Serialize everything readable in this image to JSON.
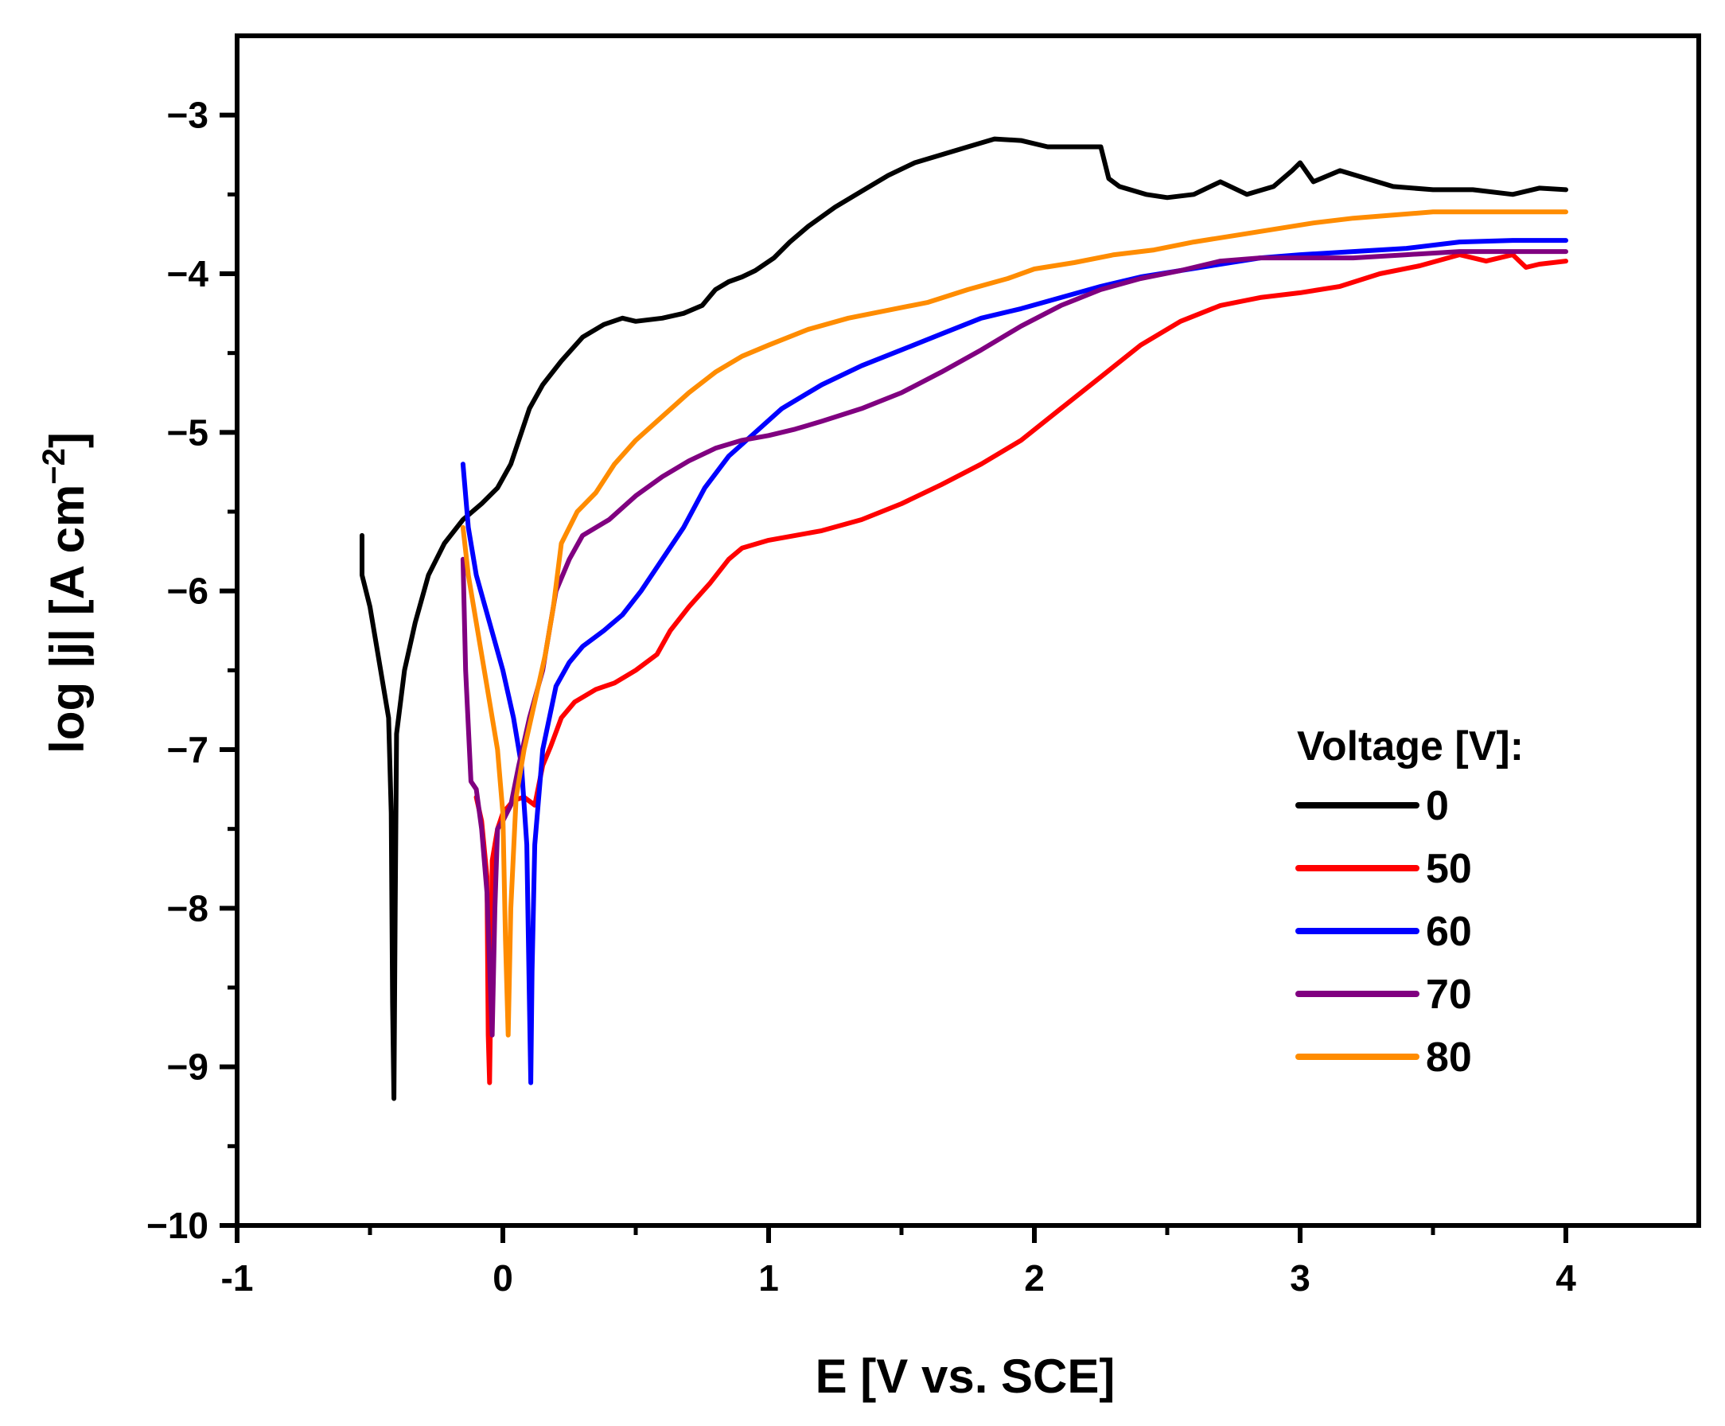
{
  "chart_data": {
    "type": "line",
    "title": "",
    "xlabel": "E [V vs. SCE]",
    "ylabel": "log |j| [A cm",
    "ylabel_sup": "−2",
    "ylabel_close": "]",
    "xlim": [
      -1,
      4.5
    ],
    "ylim": [
      -10,
      -2.5
    ],
    "xticks": [
      -1,
      0,
      1,
      2,
      3,
      4
    ],
    "xtick_labels": [
      "-1",
      "0",
      "1",
      "2",
      "3",
      "4"
    ],
    "yticks": [
      -10,
      -9,
      -8,
      -7,
      -6,
      -5,
      -4,
      -3
    ],
    "ytick_labels": [
      "−10",
      "−9",
      "−8",
      "−7",
      "−6",
      "−5",
      "−4",
      "−3"
    ],
    "legend_title": "Voltage [V]:",
    "legend_position": "bottom-right",
    "series": [
      {
        "name": "0",
        "color": "#000000",
        "points": [
          [
            -0.53,
            -5.65
          ],
          [
            -0.53,
            -5.9
          ],
          [
            -0.5,
            -6.1
          ],
          [
            -0.46,
            -6.5
          ],
          [
            -0.43,
            -6.8
          ],
          [
            -0.42,
            -7.4
          ],
          [
            -0.415,
            -8.6
          ],
          [
            -0.41,
            -9.2
          ],
          [
            -0.405,
            -8.0
          ],
          [
            -0.4,
            -6.9
          ],
          [
            -0.37,
            -6.5
          ],
          [
            -0.33,
            -6.2
          ],
          [
            -0.28,
            -5.9
          ],
          [
            -0.22,
            -5.7
          ],
          [
            -0.15,
            -5.55
          ],
          [
            -0.08,
            -5.45
          ],
          [
            -0.02,
            -5.35
          ],
          [
            0.03,
            -5.2
          ],
          [
            0.07,
            -5.0
          ],
          [
            0.1,
            -4.85
          ],
          [
            0.15,
            -4.7
          ],
          [
            0.22,
            -4.55
          ],
          [
            0.3,
            -4.4
          ],
          [
            0.38,
            -4.32
          ],
          [
            0.45,
            -4.28
          ],
          [
            0.5,
            -4.3
          ],
          [
            0.6,
            -4.28
          ],
          [
            0.68,
            -4.25
          ],
          [
            0.75,
            -4.2
          ],
          [
            0.8,
            -4.1
          ],
          [
            0.85,
            -4.05
          ],
          [
            0.9,
            -4.02
          ],
          [
            0.95,
            -3.98
          ],
          [
            1.02,
            -3.9
          ],
          [
            1.08,
            -3.8
          ],
          [
            1.15,
            -3.7
          ],
          [
            1.25,
            -3.58
          ],
          [
            1.35,
            -3.48
          ],
          [
            1.45,
            -3.38
          ],
          [
            1.55,
            -3.3
          ],
          [
            1.65,
            -3.25
          ],
          [
            1.75,
            -3.2
          ],
          [
            1.85,
            -3.15
          ],
          [
            1.95,
            -3.16
          ],
          [
            2.05,
            -3.2
          ],
          [
            2.15,
            -3.2
          ],
          [
            2.25,
            -3.2
          ],
          [
            2.28,
            -3.4
          ],
          [
            2.32,
            -3.45
          ],
          [
            2.42,
            -3.5
          ],
          [
            2.5,
            -3.52
          ],
          [
            2.6,
            -3.5
          ],
          [
            2.7,
            -3.42
          ],
          [
            2.8,
            -3.5
          ],
          [
            2.9,
            -3.45
          ],
          [
            2.97,
            -3.35
          ],
          [
            3.0,
            -3.3
          ],
          [
            3.05,
            -3.42
          ],
          [
            3.15,
            -3.35
          ],
          [
            3.25,
            -3.4
          ],
          [
            3.35,
            -3.45
          ],
          [
            3.5,
            -3.47
          ],
          [
            3.65,
            -3.47
          ],
          [
            3.8,
            -3.5
          ],
          [
            3.9,
            -3.46
          ],
          [
            4.0,
            -3.47
          ]
        ]
      },
      {
        "name": "50",
        "color": "#ff0000",
        "points": [
          [
            -0.1,
            -7.3
          ],
          [
            -0.08,
            -7.45
          ],
          [
            -0.06,
            -7.8
          ],
          [
            -0.055,
            -8.8
          ],
          [
            -0.05,
            -9.1
          ],
          [
            -0.045,
            -8.5
          ],
          [
            -0.04,
            -7.7
          ],
          [
            -0.02,
            -7.5
          ],
          [
            0.0,
            -7.4
          ],
          [
            0.04,
            -7.32
          ],
          [
            0.08,
            -7.3
          ],
          [
            0.12,
            -7.35
          ],
          [
            0.15,
            -7.1
          ],
          [
            0.18,
            -6.98
          ],
          [
            0.22,
            -6.8
          ],
          [
            0.27,
            -6.7
          ],
          [
            0.35,
            -6.62
          ],
          [
            0.42,
            -6.58
          ],
          [
            0.5,
            -6.5
          ],
          [
            0.58,
            -6.4
          ],
          [
            0.63,
            -6.25
          ],
          [
            0.7,
            -6.1
          ],
          [
            0.78,
            -5.95
          ],
          [
            0.85,
            -5.8
          ],
          [
            0.9,
            -5.73
          ],
          [
            1.0,
            -5.68
          ],
          [
            1.1,
            -5.65
          ],
          [
            1.2,
            -5.62
          ],
          [
            1.35,
            -5.55
          ],
          [
            1.5,
            -5.45
          ],
          [
            1.65,
            -5.33
          ],
          [
            1.8,
            -5.2
          ],
          [
            1.95,
            -5.05
          ],
          [
            2.1,
            -4.85
          ],
          [
            2.25,
            -4.65
          ],
          [
            2.4,
            -4.45
          ],
          [
            2.55,
            -4.3
          ],
          [
            2.7,
            -4.2
          ],
          [
            2.85,
            -4.15
          ],
          [
            3.0,
            -4.12
          ],
          [
            3.15,
            -4.08
          ],
          [
            3.3,
            -4.0
          ],
          [
            3.45,
            -3.95
          ],
          [
            3.6,
            -3.88
          ],
          [
            3.7,
            -3.92
          ],
          [
            3.8,
            -3.88
          ],
          [
            3.85,
            -3.96
          ],
          [
            3.9,
            -3.94
          ],
          [
            4.0,
            -3.92
          ]
        ]
      },
      {
        "name": "60",
        "color": "#0000ff",
        "points": [
          [
            -0.15,
            -5.2
          ],
          [
            -0.13,
            -5.6
          ],
          [
            -0.1,
            -5.9
          ],
          [
            -0.05,
            -6.2
          ],
          [
            0.0,
            -6.5
          ],
          [
            0.04,
            -6.8
          ],
          [
            0.07,
            -7.1
          ],
          [
            0.09,
            -7.6
          ],
          [
            0.1,
            -8.6
          ],
          [
            0.105,
            -9.1
          ],
          [
            0.11,
            -8.4
          ],
          [
            0.12,
            -7.6
          ],
          [
            0.15,
            -7.0
          ],
          [
            0.2,
            -6.6
          ],
          [
            0.25,
            -6.45
          ],
          [
            0.3,
            -6.35
          ],
          [
            0.38,
            -6.25
          ],
          [
            0.45,
            -6.15
          ],
          [
            0.52,
            -6.0
          ],
          [
            0.6,
            -5.8
          ],
          [
            0.68,
            -5.6
          ],
          [
            0.76,
            -5.35
          ],
          [
            0.85,
            -5.15
          ],
          [
            0.95,
            -5.0
          ],
          [
            1.05,
            -4.85
          ],
          [
            1.2,
            -4.7
          ],
          [
            1.35,
            -4.58
          ],
          [
            1.5,
            -4.48
          ],
          [
            1.65,
            -4.38
          ],
          [
            1.8,
            -4.28
          ],
          [
            1.95,
            -4.22
          ],
          [
            2.1,
            -4.15
          ],
          [
            2.25,
            -4.08
          ],
          [
            2.4,
            -4.02
          ],
          [
            2.55,
            -3.98
          ],
          [
            2.7,
            -3.94
          ],
          [
            2.85,
            -3.9
          ],
          [
            3.0,
            -3.88
          ],
          [
            3.2,
            -3.86
          ],
          [
            3.4,
            -3.84
          ],
          [
            3.6,
            -3.8
          ],
          [
            3.8,
            -3.79
          ],
          [
            4.0,
            -3.79
          ]
        ]
      },
      {
        "name": "70",
        "color": "#800080",
        "points": [
          [
            -0.15,
            -5.8
          ],
          [
            -0.14,
            -6.5
          ],
          [
            -0.12,
            -7.2
          ],
          [
            -0.1,
            -7.25
          ],
          [
            -0.08,
            -7.5
          ],
          [
            -0.06,
            -7.9
          ],
          [
            -0.04,
            -8.8
          ],
          [
            -0.03,
            -8.0
          ],
          [
            -0.02,
            -7.5
          ],
          [
            0.0,
            -7.45
          ],
          [
            0.03,
            -7.35
          ],
          [
            0.06,
            -7.1
          ],
          [
            0.1,
            -6.8
          ],
          [
            0.15,
            -6.5
          ],
          [
            0.2,
            -6.0
          ],
          [
            0.25,
            -5.8
          ],
          [
            0.3,
            -5.65
          ],
          [
            0.4,
            -5.55
          ],
          [
            0.5,
            -5.4
          ],
          [
            0.6,
            -5.28
          ],
          [
            0.7,
            -5.18
          ],
          [
            0.8,
            -5.1
          ],
          [
            0.9,
            -5.05
          ],
          [
            1.0,
            -5.02
          ],
          [
            1.1,
            -4.98
          ],
          [
            1.2,
            -4.93
          ],
          [
            1.35,
            -4.85
          ],
          [
            1.5,
            -4.75
          ],
          [
            1.65,
            -4.62
          ],
          [
            1.8,
            -4.48
          ],
          [
            1.95,
            -4.33
          ],
          [
            2.1,
            -4.2
          ],
          [
            2.25,
            -4.1
          ],
          [
            2.4,
            -4.03
          ],
          [
            2.55,
            -3.98
          ],
          [
            2.7,
            -3.92
          ],
          [
            2.85,
            -3.9
          ],
          [
            3.0,
            -3.9
          ],
          [
            3.2,
            -3.9
          ],
          [
            3.4,
            -3.88
          ],
          [
            3.6,
            -3.86
          ],
          [
            3.8,
            -3.86
          ],
          [
            4.0,
            -3.86
          ]
        ]
      },
      {
        "name": "80",
        "color": "#ff8c00",
        "points": [
          [
            -0.15,
            -5.6
          ],
          [
            -0.13,
            -5.9
          ],
          [
            -0.1,
            -6.2
          ],
          [
            -0.06,
            -6.6
          ],
          [
            -0.02,
            -7.0
          ],
          [
            0.0,
            -7.4
          ],
          [
            0.01,
            -8.2
          ],
          [
            0.02,
            -8.8
          ],
          [
            0.03,
            -8.0
          ],
          [
            0.05,
            -7.3
          ],
          [
            0.08,
            -7.0
          ],
          [
            0.12,
            -6.7
          ],
          [
            0.16,
            -6.4
          ],
          [
            0.19,
            -6.1
          ],
          [
            0.22,
            -5.7
          ],
          [
            0.28,
            -5.5
          ],
          [
            0.35,
            -5.38
          ],
          [
            0.42,
            -5.2
          ],
          [
            0.5,
            -5.05
          ],
          [
            0.6,
            -4.9
          ],
          [
            0.7,
            -4.75
          ],
          [
            0.8,
            -4.62
          ],
          [
            0.9,
            -4.52
          ],
          [
            1.0,
            -4.45
          ],
          [
            1.15,
            -4.35
          ],
          [
            1.3,
            -4.28
          ],
          [
            1.45,
            -4.23
          ],
          [
            1.6,
            -4.18
          ],
          [
            1.75,
            -4.1
          ],
          [
            1.9,
            -4.03
          ],
          [
            2.0,
            -3.97
          ],
          [
            2.15,
            -3.93
          ],
          [
            2.3,
            -3.88
          ],
          [
            2.45,
            -3.85
          ],
          [
            2.6,
            -3.8
          ],
          [
            2.75,
            -3.76
          ],
          [
            2.9,
            -3.72
          ],
          [
            3.05,
            -3.68
          ],
          [
            3.2,
            -3.65
          ],
          [
            3.35,
            -3.63
          ],
          [
            3.5,
            -3.61
          ],
          [
            3.7,
            -3.61
          ],
          [
            3.85,
            -3.61
          ],
          [
            4.0,
            -3.61
          ]
        ]
      }
    ]
  }
}
